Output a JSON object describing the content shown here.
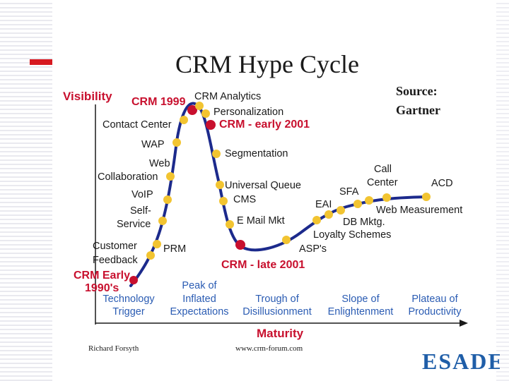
{
  "slide": {
    "title": "CRM Hype Cycle",
    "source_line1": "Source:",
    "source_line2": "Gartner",
    "brand": "ESADE",
    "footer_left": "Richard Forsyth",
    "footer_right": "www.crm-forum.com"
  },
  "axes": {
    "y_label": "Visibility",
    "x_label": "Maturity"
  },
  "milestones": {
    "crm_1999": "CRM 1999",
    "crm_early_2001": "CRM - early 2001",
    "crm_late_2001": "CRM - late 2001",
    "crm_early_1990s_line1": "CRM Early",
    "crm_early_1990s_line2": "1990's"
  },
  "technologies": {
    "crm_analytics": "CRM Analytics",
    "personalization": "Personalization",
    "contact_center": "Contact Center",
    "wap": "WAP",
    "web_collab_line1": "Web",
    "web_collab_line2": "Collaboration",
    "voip": "VoIP",
    "self_service_line1": "Self-",
    "self_service_line2": "Service",
    "customer_feedback_line1": "Customer",
    "customer_feedback_line2": "Feedback",
    "prm": "PRM",
    "segmentation": "Segmentation",
    "universal_queue": "Universal Queue",
    "cms": "CMS",
    "email_mkt": "E Mail Mkt",
    "asps": "ASP's",
    "eai": "EAI",
    "sfa": "SFA",
    "call_center_line1": "Call",
    "call_center_line2": "Center",
    "acd": "ACD",
    "web_measurement": "Web Measurement",
    "db_mktg": "DB Mktg.",
    "loyalty_schemes": "Loyalty Schemes"
  },
  "phases": {
    "trigger_line1": "Technology",
    "trigger_line2": "Trigger",
    "peak_line1": "Peak of",
    "peak_line2": "Inflated",
    "peak_line3": "Expectations",
    "trough_line1": "Trough of",
    "trough_line2": "Disillusionment",
    "slope_line1": "Slope of",
    "slope_line2": "Enlightenment",
    "plateau_line1": "Plateau of",
    "plateau_line2": "Productivity"
  },
  "colors": {
    "curve": "#1c2a8c",
    "dot_yellow": "#f2c431",
    "dot_red": "#c8102e",
    "accent_red": "#d71920",
    "phase_blue": "#2b5cb3"
  }
}
